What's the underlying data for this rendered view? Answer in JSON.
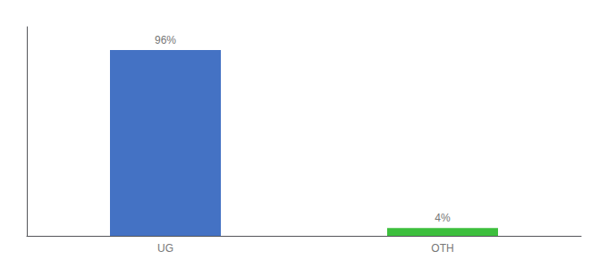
{
  "chart_data": {
    "type": "bar",
    "categories": [
      "UG",
      "OTH"
    ],
    "values": [
      96,
      4
    ],
    "value_labels": [
      "96%",
      "4%"
    ],
    "data_labels": true,
    "colors": [
      "#4472c4",
      "#3dbf3d"
    ],
    "ylim": [
      0,
      108
    ],
    "tick_labels": "x",
    "grid": false
  }
}
